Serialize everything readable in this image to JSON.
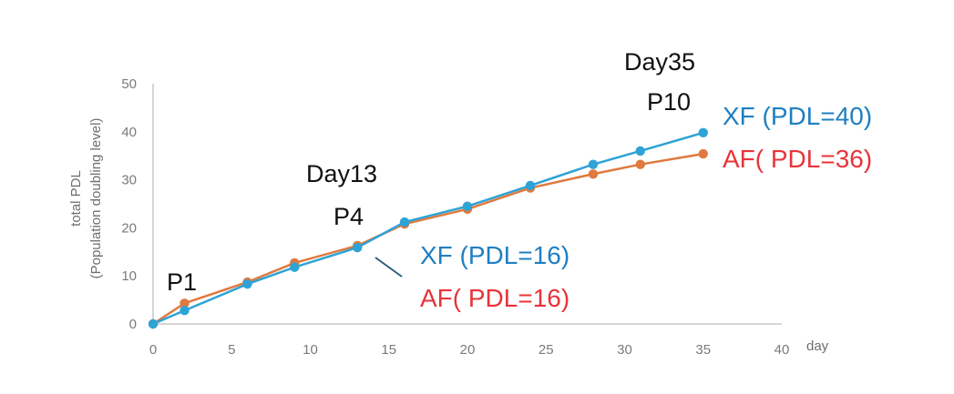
{
  "chart_data": {
    "type": "line",
    "xlabel": "day",
    "ylabel_line1": "total PDL",
    "ylabel_line2": "(Population doubling level)",
    "xlim": [
      0,
      40
    ],
    "ylim": [
      0,
      50
    ],
    "xticks": [
      0,
      5,
      10,
      15,
      20,
      25,
      30,
      35,
      40
    ],
    "yticks": [
      0,
      10,
      20,
      30,
      40,
      50
    ],
    "grid": false,
    "series": [
      {
        "key": "af",
        "color": "#e07a3f",
        "x": [
          0,
          2,
          6,
          9,
          13,
          16,
          20,
          24,
          28,
          31,
          35
        ],
        "y": [
          0,
          4.3,
          8.7,
          12.7,
          16.3,
          20.8,
          23.9,
          28.3,
          31.2,
          33.2,
          35.4
        ]
      },
      {
        "key": "xf",
        "color": "#2ea3d6",
        "x": [
          0,
          2,
          6,
          9,
          13,
          16,
          20,
          24,
          28,
          31,
          35
        ],
        "y": [
          0,
          2.8,
          8.3,
          11.8,
          15.9,
          21.2,
          24.5,
          28.8,
          33.2,
          36.0,
          39.8
        ]
      }
    ],
    "annotations": {
      "p1": "P1",
      "day13": "Day13",
      "p4": "P4",
      "day35": "Day35",
      "p10": "P10",
      "xf_mid": "XF (PDL=16)",
      "af_mid": "AF( PDL=16)",
      "xf_end": "XF (PDL=40)",
      "af_end": "AF( PDL=36)"
    },
    "label_colors": {
      "xf": "#1f7fc2",
      "af": "#e8343a"
    },
    "axis_color": "#c8c8c8",
    "pointer_color": "#2a5f7a"
  }
}
